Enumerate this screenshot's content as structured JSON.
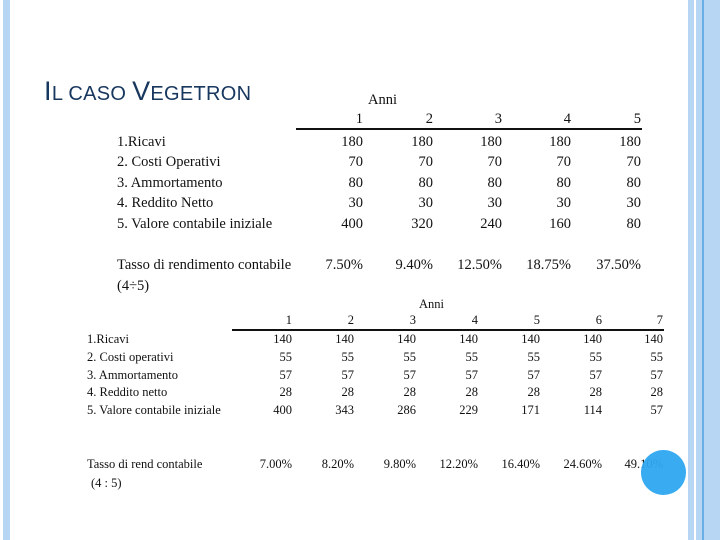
{
  "slide": {
    "title_parts": [
      "I",
      "L CASO ",
      "V",
      "EGETRON"
    ],
    "colors": {
      "title": "#17375e",
      "border_light": "#b7d6f4",
      "border_line": "#6aaee6",
      "circle": "#2ea6f0"
    }
  },
  "table1": {
    "group_header": "Anni",
    "years": [
      "1",
      "2",
      "3",
      "4",
      "5"
    ],
    "rows": [
      {
        "label": "1.Ricavi",
        "values": [
          "180",
          "180",
          "180",
          "180",
          "180"
        ]
      },
      {
        "label": "2. Costi Operativi",
        "values": [
          "70",
          "70",
          "70",
          "70",
          "70"
        ]
      },
      {
        "label": "3. Ammortamento",
        "values": [
          "80",
          "80",
          "80",
          "80",
          "80"
        ]
      },
      {
        "label": "4. Reddito Netto",
        "values": [
          "30",
          "30",
          "30",
          "30",
          "30"
        ]
      },
      {
        "label": "5. Valore contabile iniziale",
        "values": [
          "400",
          "320",
          "240",
          "160",
          "80"
        ]
      }
    ],
    "rate": {
      "label": "Tasso di rendimento contabile",
      "label2": "(4÷5)",
      "values": [
        "7.50%",
        "9.40%",
        "12.50%",
        "18.75%",
        "37.50%"
      ]
    }
  },
  "table2": {
    "group_header": "Anni",
    "years": [
      "1",
      "2",
      "3",
      "4",
      "5",
      "6",
      "7"
    ],
    "rows": [
      {
        "label": "1.Ricavi",
        "values": [
          "140",
          "140",
          "140",
          "140",
          "140",
          "140",
          "140"
        ]
      },
      {
        "label": "2. Costi operativi",
        "values": [
          "55",
          "55",
          "55",
          "55",
          "55",
          "55",
          "55"
        ]
      },
      {
        "label": "3. Ammortamento",
        "values": [
          "57",
          "57",
          "57",
          "57",
          "57",
          "57",
          "57"
        ]
      },
      {
        "label": "4. Reddito netto",
        "values": [
          "28",
          "28",
          "28",
          "28",
          "28",
          "28",
          "28"
        ]
      },
      {
        "label": "5. Valore contabile iniziale",
        "values": [
          "400",
          "343",
          "286",
          "229",
          "171",
          "114",
          "57"
        ]
      }
    ],
    "rate": {
      "label": "Tasso di rend contabile",
      "label2": "(4 : 5)",
      "values": [
        "7.00%",
        "8.20%",
        "9.80%",
        "12.20%",
        "16.40%",
        "24.60%",
        "49.10%"
      ]
    }
  }
}
